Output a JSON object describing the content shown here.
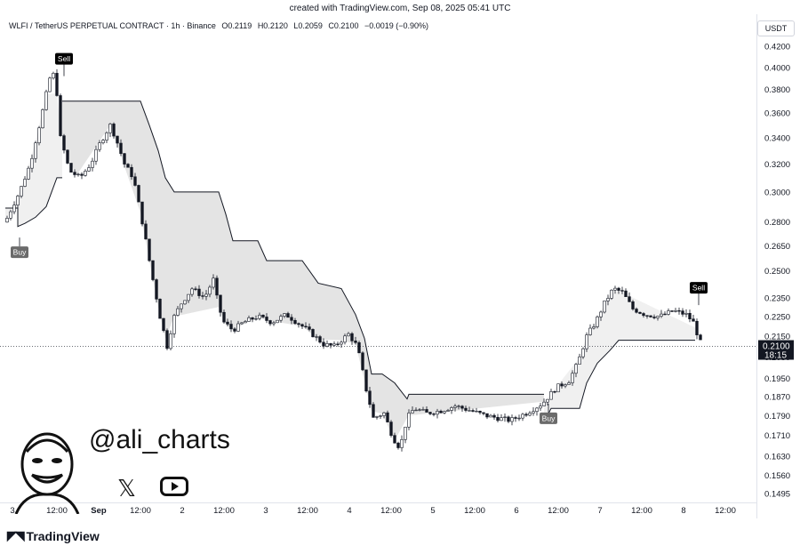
{
  "caption": "created with TradingView.com, Sep 08, 2025 05:41 UTC",
  "legend": {
    "symbol": "WLFI / TetherUS PERPETUAL CONTRACT · 1h · Binance",
    "open": "O0.2119",
    "high": "H0.2120",
    "low": "L0.2059",
    "close": "C0.2100",
    "change": "−0.0019 (−0.90%)"
  },
  "currency": "USDT",
  "price_badge": {
    "price": "0.2100",
    "countdown": "18:15"
  },
  "branding": {
    "tradingview": "TradingView",
    "handle": "@ali_charts"
  },
  "colors": {
    "candle": "#131722",
    "band_fill": "#e6e6e6",
    "band_line": "#131722",
    "sell_label_bg": "#000000",
    "buy_label_bg": "#6b6b6b"
  },
  "chart_data": {
    "type": "candlestick",
    "y_axis": {
      "scale": "log",
      "ticks": [
        "0.4200",
        "0.4000",
        "0.3800",
        "0.3600",
        "0.3400",
        "0.3200",
        "0.3000",
        "0.2800",
        "0.2650",
        "0.2500",
        "0.2350",
        "0.2250",
        "0.2150",
        "0.2050",
        "0.1950",
        "0.1870",
        "0.1790",
        "0.1710",
        "0.1630",
        "0.1560",
        "0.1495"
      ]
    },
    "x_axis": {
      "ticks": [
        "3",
        "12:00",
        "Sep",
        "12:00",
        "2",
        "12:00",
        "3",
        "12:00",
        "4",
        "12:00",
        "5",
        "12:00",
        "6",
        "12:00",
        "7",
        "12:00",
        "8",
        "12:00"
      ]
    },
    "last_price": 0.21,
    "signals": [
      {
        "label": "Buy",
        "price": 0.27
      },
      {
        "label": "Sell",
        "price": 0.392
      },
      {
        "label": "Buy",
        "price": 0.184
      },
      {
        "label": "Sell",
        "price": 0.231
      }
    ],
    "path_anchors": [
      [
        0,
        0.272
      ],
      [
        10,
        0.285
      ],
      [
        22,
        0.3
      ],
      [
        34,
        0.32
      ],
      [
        46,
        0.355
      ],
      [
        56,
        0.39
      ],
      [
        62,
        0.395
      ],
      [
        68,
        0.34
      ],
      [
        78,
        0.315
      ],
      [
        90,
        0.31
      ],
      [
        102,
        0.32
      ],
      [
        112,
        0.335
      ],
      [
        124,
        0.35
      ],
      [
        130,
        0.34
      ],
      [
        140,
        0.32
      ],
      [
        150,
        0.31
      ],
      [
        160,
        0.28
      ],
      [
        170,
        0.25
      ],
      [
        180,
        0.225
      ],
      [
        188,
        0.21
      ],
      [
        196,
        0.225
      ],
      [
        204,
        0.232
      ],
      [
        216,
        0.24
      ],
      [
        230,
        0.235
      ],
      [
        240,
        0.245
      ],
      [
        246,
        0.23
      ],
      [
        252,
        0.222
      ],
      [
        262,
        0.218
      ],
      [
        274,
        0.222
      ],
      [
        290,
        0.225
      ],
      [
        306,
        0.222
      ],
      [
        322,
        0.226
      ],
      [
        334,
        0.222
      ],
      [
        346,
        0.218
      ],
      [
        354,
        0.215
      ],
      [
        364,
        0.211
      ],
      [
        376,
        0.21
      ],
      [
        392,
        0.216
      ],
      [
        402,
        0.21
      ],
      [
        412,
        0.19
      ],
      [
        420,
        0.178
      ],
      [
        432,
        0.18
      ],
      [
        442,
        0.17
      ],
      [
        450,
        0.166
      ],
      [
        458,
        0.178
      ],
      [
        466,
        0.182
      ],
      [
        480,
        0.18
      ],
      [
        496,
        0.181
      ],
      [
        512,
        0.183
      ],
      [
        530,
        0.181
      ],
      [
        546,
        0.179
      ],
      [
        560,
        0.178
      ],
      [
        574,
        0.177
      ],
      [
        592,
        0.18
      ],
      [
        610,
        0.184
      ],
      [
        626,
        0.191
      ],
      [
        640,
        0.194
      ],
      [
        650,
        0.202
      ],
      [
        660,
        0.215
      ],
      [
        670,
        0.222
      ],
      [
        680,
        0.232
      ],
      [
        690,
        0.24
      ],
      [
        700,
        0.238
      ],
      [
        712,
        0.229
      ],
      [
        726,
        0.226
      ],
      [
        742,
        0.225
      ],
      [
        758,
        0.228
      ],
      [
        772,
        0.226
      ],
      [
        780,
        0.222
      ],
      [
        786,
        0.214
      ],
      [
        790,
        0.21
      ]
    ],
    "bands": [
      {
        "points": [
          [
            6,
            0.289
          ],
          [
            20,
            0.289
          ],
          [
            20,
            0.277
          ],
          [
            28,
            0.279
          ],
          [
            40,
            0.283
          ],
          [
            52,
            0.29
          ],
          [
            64,
            0.31
          ],
          [
            70,
            0.31
          ]
        ],
        "style": "support"
      },
      {
        "points": [
          [
            70,
            0.37
          ],
          [
            86,
            0.37
          ],
          [
            124,
            0.37
          ],
          [
            158,
            0.37
          ],
          [
            168,
            0.35
          ],
          [
            178,
            0.33
          ],
          [
            186,
            0.31
          ],
          [
            196,
            0.3
          ],
          [
            246,
            0.3
          ],
          [
            254,
            0.285
          ],
          [
            262,
            0.268
          ],
          [
            290,
            0.268
          ],
          [
            300,
            0.256
          ],
          [
            340,
            0.256
          ],
          [
            358,
            0.243
          ],
          [
            384,
            0.24
          ],
          [
            400,
            0.226
          ],
          [
            410,
            0.214
          ],
          [
            418,
            0.197
          ],
          [
            430,
            0.197
          ],
          [
            444,
            0.193
          ],
          [
            458,
            0.186
          ],
          [
            460,
            0.188
          ],
          [
            612,
            0.188
          ]
        ],
        "style": "resistance"
      },
      {
        "points": [
          [
            612,
            0.176
          ],
          [
            620,
            0.182
          ],
          [
            652,
            0.182
          ],
          [
            660,
            0.193
          ],
          [
            672,
            0.202
          ],
          [
            686,
            0.208
          ],
          [
            696,
            0.213
          ],
          [
            782,
            0.213
          ]
        ],
        "style": "support"
      }
    ]
  }
}
